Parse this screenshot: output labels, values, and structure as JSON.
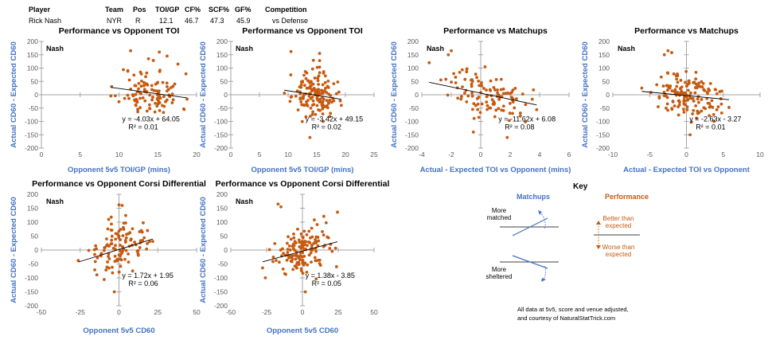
{
  "header": {
    "columns": [
      "Player",
      "Team",
      "Pos",
      "TOI/GP",
      "CF%",
      "SCF%",
      "GF%",
      "Competition"
    ],
    "values": [
      "Rick Nash",
      "NYR",
      "R",
      "12.1",
      "46.7",
      "47.3",
      "45.9",
      "vs Defense"
    ]
  },
  "colors": {
    "dot": "#c55a11",
    "axis_label": "#4472c4",
    "matchups": "#4472c4",
    "performance": "#c55a11"
  },
  "chart_data": [
    {
      "type": "scatter",
      "title": "Performance vs Opponent TOI",
      "player": "Nash",
      "xlabel": "Opponent 5v5 TOI/GP (mins)",
      "ylabel": "Actual CD60 - Expected CD60",
      "xlim": [
        0,
        20
      ],
      "xticks": [
        0,
        5,
        10,
        15,
        20
      ],
      "ylim": [
        -200,
        200
      ],
      "yticks": [
        -200,
        -150,
        -100,
        -50,
        0,
        50,
        100,
        150,
        200
      ],
      "trend": {
        "slope": -4.03,
        "intercept": 64.05
      },
      "equation": "y = -4.03x + 64.05",
      "r2": "R² = 0.01",
      "x_mean": 14,
      "x_sd": 2.0,
      "y_sd": 45,
      "n": 110,
      "seed": 11,
      "outliers": [
        [
          11.5,
          165
        ],
        [
          15.2,
          160
        ],
        [
          13.8,
          135
        ],
        [
          16.2,
          145
        ],
        [
          17.6,
          115
        ]
      ]
    },
    {
      "type": "scatter",
      "title": "Performance vs Opponent TOI",
      "player": "Nash",
      "xlabel": "Opponent 5v5 TOI/GP (mins)",
      "ylabel": "Actual CD60 - Expected CD60",
      "xlim": [
        0,
        25
      ],
      "xticks": [
        0,
        5,
        10,
        15,
        20,
        25
      ],
      "ylim": [
        -200,
        200
      ],
      "yticks": [
        -200,
        -150,
        -100,
        -50,
        0,
        50,
        100,
        150,
        200
      ],
      "trend": {
        "slope": -3.42,
        "intercept": 49.15
      },
      "equation": "y = -3.42x + 49.15",
      "r2": "R² = 0.02",
      "x_mean": 14.5,
      "x_sd": 1.9,
      "y_sd": 42,
      "n": 150,
      "seed": 23,
      "outliers": [
        [
          10.5,
          162
        ],
        [
          15.5,
          155
        ],
        [
          15.5,
          128
        ],
        [
          13.8,
          -160
        ]
      ]
    },
    {
      "type": "scatter",
      "title": "Performance vs Matchups",
      "player": "Nash",
      "xlabel": "Actual - Expected TOI vs Opponent (mins)",
      "ylabel": "Actual CD60 - Expected CD60",
      "xlim": [
        -4,
        6
      ],
      "xticks": [
        -4,
        -2,
        0,
        2,
        4,
        6
      ],
      "ylim": [
        -200,
        200
      ],
      "yticks": [
        -200,
        -150,
        -100,
        -50,
        0,
        50,
        100,
        150,
        200
      ],
      "trend": {
        "slope": -11.62,
        "intercept": 6.08
      },
      "equation": "y = -11.62x + 6.08",
      "r2": "R² = 0.08",
      "x_mean": 0.6,
      "x_sd": 1.4,
      "y_sd": 42,
      "n": 110,
      "seed": 37,
      "outliers": [
        [
          -2.0,
          165
        ],
        [
          -2.2,
          150
        ],
        [
          -3.5,
          120
        ],
        [
          -0.5,
          -140
        ],
        [
          1.8,
          -160
        ]
      ]
    },
    {
      "type": "scatter",
      "title": "Performance vs Matchups",
      "player": "Nash",
      "xlabel": "Actual - Expected TOI vs Opponent",
      "ylabel": "Actual CD60 - Expected CD60",
      "xlim": [
        -10,
        10
      ],
      "xticks": [
        -10,
        -5,
        0,
        5,
        10
      ],
      "ylim": [
        -200,
        200
      ],
      "yticks": [
        -200,
        -150,
        -100,
        -50,
        0,
        50,
        100,
        150,
        200
      ],
      "trend": {
        "slope": -2.63,
        "intercept": -3.27
      },
      "equation": "y = -2.63x - 3.27",
      "r2": "R² = 0.01",
      "x_mean": 0,
      "x_sd": 2.4,
      "y_sd": 42,
      "n": 150,
      "seed": 51,
      "outliers": [
        [
          -2.5,
          165
        ],
        [
          -2.0,
          158
        ],
        [
          -3.0,
          150
        ],
        [
          0.5,
          -150
        ]
      ]
    },
    {
      "type": "scatter",
      "title": "Performance vs Opponent Corsi Differential",
      "player": "Nash",
      "xlabel": "Opponent 5v5 CD60",
      "ylabel": "Actual CD60 - Expected CD60",
      "xlim": [
        -50,
        50
      ],
      "xticks": [
        -50,
        -25,
        0,
        25,
        50
      ],
      "ylim": [
        -200,
        200
      ],
      "yticks": [
        -200,
        -150,
        -100,
        -50,
        0,
        50,
        100,
        150,
        200
      ],
      "trend": {
        "slope": 1.72,
        "intercept": 1.95
      },
      "equation": "y = 1.72x + 1.95",
      "r2": "R² = 0.06",
      "x_mean": 0,
      "x_sd": 9,
      "y_sd": 45,
      "n": 110,
      "seed": 67,
      "outliers": [
        [
          0,
          162
        ],
        [
          2,
          160
        ],
        [
          -5,
          118
        ],
        [
          -3,
          -150
        ]
      ]
    },
    {
      "type": "scatter",
      "title": "Performance vs Opponent Corsi Differential",
      "player": "Nash",
      "xlabel": "Opponent 5v5 CD60",
      "ylabel": "Actual CD60 - Expected CD60",
      "xlim": [
        -50,
        50
      ],
      "xticks": [
        -50,
        -25,
        0,
        25,
        50
      ],
      "ylim": [
        -200,
        200
      ],
      "yticks": [
        -200,
        -150,
        -100,
        -50,
        0,
        50,
        100,
        150,
        200
      ],
      "trend": {
        "slope": 1.38,
        "intercept": -3.85
      },
      "equation": "y = 1.38x - 3.85",
      "r2": "R² = 0.05",
      "x_mean": 0,
      "x_sd": 10,
      "y_sd": 42,
      "n": 150,
      "seed": 83,
      "outliers": [
        [
          -17,
          165
        ],
        [
          -15,
          155
        ],
        [
          2,
          -150
        ]
      ]
    }
  ],
  "key": {
    "title": "Key",
    "matchups_label": "Matchups",
    "performance_label": "Performance",
    "more_matched": "More matched",
    "more_sheltered": "More sheltered",
    "better": "Better than expected",
    "worse": "Worse than expected"
  },
  "notes": {
    "line1": "All data at 5v5, score and venue adjusted,",
    "line2": "and courtesy of NaturalStatTrick.com"
  }
}
